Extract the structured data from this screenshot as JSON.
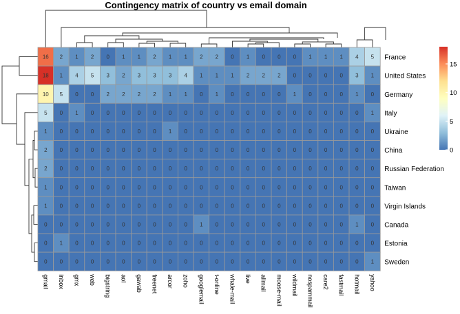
{
  "chart_data": {
    "type": "heatmap",
    "title": "Contingency matrix of country vs email domain",
    "rows": [
      "France",
      "United States",
      "Germany",
      "Italy",
      "Ukraine",
      "China",
      "Russian Federation",
      "Taiwan",
      "Virgin Islands",
      "Canada",
      "Estonia",
      "Sweden"
    ],
    "columns": [
      "gmail",
      "inbox",
      "gmx",
      "web",
      "bigstring",
      "aol",
      "gawab",
      "freenet",
      "arcor",
      "zoho",
      "googlemail",
      "t-online",
      "whale-mail",
      "live",
      "allmail",
      "moose-mail",
      "wildmail",
      "nospammail",
      "care2",
      "fastmail",
      "hotmail",
      "yahoo"
    ],
    "values": [
      [
        16,
        2,
        1,
        2,
        0,
        1,
        1,
        2,
        1,
        1,
        2,
        2,
        0,
        1,
        0,
        0,
        0,
        1,
        1,
        1,
        4,
        5
      ],
      [
        18,
        1,
        4,
        5,
        3,
        2,
        3,
        3,
        3,
        4,
        1,
        1,
        1,
        2,
        2,
        2,
        0,
        0,
        0,
        0,
        3,
        1
      ],
      [
        10,
        5,
        0,
        0,
        2,
        2,
        2,
        2,
        1,
        1,
        0,
        1,
        0,
        0,
        0,
        0,
        1,
        0,
        0,
        0,
        1,
        0
      ],
      [
        5,
        0,
        1,
        0,
        0,
        0,
        0,
        0,
        0,
        0,
        0,
        0,
        0,
        0,
        0,
        0,
        0,
        0,
        0,
        0,
        0,
        1
      ],
      [
        1,
        0,
        0,
        0,
        0,
        0,
        0,
        0,
        1,
        0,
        0,
        0,
        0,
        0,
        0,
        0,
        0,
        0,
        0,
        0,
        0,
        0
      ],
      [
        2,
        0,
        0,
        0,
        0,
        0,
        0,
        0,
        0,
        0,
        0,
        0,
        0,
        0,
        0,
        0,
        0,
        0,
        0,
        0,
        0,
        0
      ],
      [
        2,
        0,
        0,
        0,
        0,
        0,
        0,
        0,
        0,
        0,
        0,
        0,
        0,
        0,
        0,
        0,
        0,
        0,
        0,
        0,
        0,
        0
      ],
      [
        1,
        0,
        0,
        0,
        0,
        0,
        0,
        0,
        0,
        0,
        0,
        0,
        0,
        0,
        0,
        0,
        0,
        0,
        0,
        0,
        0,
        0
      ],
      [
        1,
        0,
        0,
        0,
        0,
        0,
        0,
        0,
        0,
        0,
        0,
        0,
        0,
        0,
        0,
        0,
        0,
        0,
        0,
        0,
        0,
        0
      ],
      [
        0,
        0,
        0,
        0,
        0,
        0,
        0,
        0,
        0,
        0,
        1,
        0,
        0,
        0,
        0,
        0,
        0,
        0,
        0,
        0,
        1,
        0
      ],
      [
        0,
        1,
        0,
        0,
        0,
        0,
        0,
        0,
        0,
        0,
        0,
        0,
        0,
        0,
        0,
        0,
        0,
        0,
        0,
        0,
        0,
        0
      ],
      [
        0,
        0,
        0,
        0,
        0,
        0,
        0,
        0,
        0,
        0,
        0,
        0,
        0,
        0,
        0,
        0,
        0,
        0,
        0,
        0,
        0,
        1
      ]
    ],
    "color_scale": {
      "range": [
        0,
        18
      ],
      "ticks": [
        0,
        5,
        10,
        15
      ],
      "colors": [
        "#4575b4",
        "#91bfdb",
        "#e0f3f8",
        "#ffffbf",
        "#fee090",
        "#fc8d59",
        "#d73027"
      ]
    },
    "show_cell_values": true,
    "row_dendrogram": true,
    "column_dendrogram": true,
    "legend_placement": "right"
  }
}
